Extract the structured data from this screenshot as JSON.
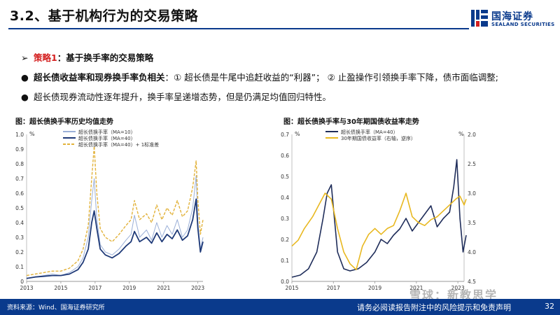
{
  "header": {
    "title": "3.2、基于机构行为的交易策略",
    "logo_cn": "国海证券",
    "logo_en": "SEALAND SECURITIES",
    "brand_color": "#0a3a8c"
  },
  "bullets": [
    {
      "marker": "➢",
      "label": "策略1",
      "text": "：基于换手率的交易策略"
    },
    {
      "marker": "●",
      "label": "超长债收益率和现券换手率负相关",
      "text": "：① 超长债是牛尾中追赶收益的“利器”； ② 止盈操作引领换手率下降，债市面临调整;"
    },
    {
      "marker": "●",
      "label": "",
      "text": "超长债现券流动性逐年提升，换手率呈递增态势，但是仍满足均值回归特性。"
    }
  ],
  "charts": {
    "left_title": "图：超长债换手率历史均值走势",
    "right_title": "图：超长债换手率与30年期国债收益率走势"
  },
  "chart_data": [
    {
      "type": "line",
      "title": "图：超长债换手率历史均值走势",
      "unit_label": "%",
      "x_ticks": [
        "2013",
        "2015",
        "2017",
        "2019",
        "2021",
        "2023"
      ],
      "ylim": [
        0,
        1.0
      ],
      "y_ticks": [
        "0",
        "0.1",
        "0.2",
        "0.3",
        "0.4",
        "0.5",
        "0.6",
        "0.7",
        "0.8",
        "0.9",
        "1.0"
      ],
      "series": [
        {
          "name": "超长债换手率（MA=10）",
          "color": "#9bb0d8",
          "x": [
            2013.0,
            2013.5,
            2014.0,
            2014.5,
            2015.0,
            2015.5,
            2016.0,
            2016.3,
            2016.6,
            2016.8,
            2016.95,
            2017.1,
            2017.3,
            2017.6,
            2018.0,
            2018.4,
            2018.8,
            2019.1,
            2019.3,
            2019.6,
            2020.0,
            2020.3,
            2020.6,
            2020.9,
            2021.2,
            2021.5,
            2021.8,
            2022.1,
            2022.4,
            2022.7,
            2022.9,
            2023.0,
            2023.15,
            2023.3
          ],
          "y": [
            0.02,
            0.03,
            0.04,
            0.05,
            0.04,
            0.06,
            0.1,
            0.16,
            0.3,
            0.55,
            0.7,
            0.42,
            0.25,
            0.2,
            0.18,
            0.22,
            0.28,
            0.32,
            0.45,
            0.3,
            0.35,
            0.28,
            0.4,
            0.3,
            0.38,
            0.32,
            0.42,
            0.3,
            0.35,
            0.5,
            0.72,
            0.4,
            0.22,
            0.3
          ]
        },
        {
          "name": "超长债换手率（MA=40）",
          "color": "#1f3a78",
          "x": [
            2013.0,
            2013.5,
            2014.0,
            2014.5,
            2015.0,
            2015.5,
            2016.0,
            2016.3,
            2016.6,
            2016.8,
            2016.95,
            2017.1,
            2017.3,
            2017.6,
            2018.0,
            2018.4,
            2018.8,
            2019.1,
            2019.3,
            2019.6,
            2020.0,
            2020.3,
            2020.6,
            2020.9,
            2021.2,
            2021.5,
            2021.8,
            2022.1,
            2022.4,
            2022.7,
            2022.9,
            2023.0,
            2023.15,
            2023.3
          ],
          "y": [
            0.02,
            0.03,
            0.035,
            0.04,
            0.04,
            0.05,
            0.08,
            0.13,
            0.22,
            0.4,
            0.48,
            0.36,
            0.22,
            0.18,
            0.16,
            0.19,
            0.24,
            0.27,
            0.34,
            0.27,
            0.3,
            0.26,
            0.33,
            0.27,
            0.32,
            0.29,
            0.35,
            0.28,
            0.31,
            0.42,
            0.56,
            0.36,
            0.2,
            0.27
          ]
        },
        {
          "name": "超长债换手率（MA=40）+ 1标准差",
          "color": "#e2b23a",
          "x": [
            2013.0,
            2013.5,
            2014.0,
            2014.5,
            2015.0,
            2015.5,
            2016.0,
            2016.3,
            2016.6,
            2016.8,
            2016.95,
            2017.1,
            2017.3,
            2017.6,
            2018.0,
            2018.4,
            2018.8,
            2019.1,
            2019.3,
            2019.6,
            2020.0,
            2020.3,
            2020.6,
            2020.9,
            2021.2,
            2021.5,
            2021.8,
            2022.1,
            2022.4,
            2022.7,
            2022.9,
            2023.0,
            2023.15,
            2023.3
          ],
          "y": [
            0.04,
            0.05,
            0.06,
            0.07,
            0.07,
            0.09,
            0.14,
            0.22,
            0.38,
            0.7,
            0.92,
            0.6,
            0.36,
            0.3,
            0.27,
            0.32,
            0.38,
            0.42,
            0.55,
            0.42,
            0.46,
            0.4,
            0.52,
            0.42,
            0.5,
            0.45,
            0.55,
            0.44,
            0.48,
            0.64,
            0.82,
            0.55,
            0.32,
            0.42
          ]
        }
      ]
    },
    {
      "type": "line",
      "title": "图：超长债换手率与30年期国债收益率走势",
      "unit_label_left": "%",
      "unit_label_right": "%",
      "x_ticks": [
        "2015",
        "2017",
        "2019",
        "2021",
        "2023"
      ],
      "ylim": [
        0,
        0.7
      ],
      "y_ticks": [
        "0.0",
        "0.1",
        "0.2",
        "0.3",
        "0.4",
        "0.5",
        "0.6",
        "0.7"
      ],
      "y2lim": [
        2.0,
        4.5
      ],
      "y2_reversed": true,
      "y2_ticks": [
        "2.0",
        "2.5",
        "3.0",
        "3.5",
        "4.0",
        "4.5"
      ],
      "series": [
        {
          "name": "超长债换手率（MA=40）",
          "color": "#1f2d5a",
          "axis": "left",
          "x": [
            2015.0,
            2015.4,
            2015.8,
            2016.2,
            2016.5,
            2016.7,
            2016.9,
            2017.0,
            2017.2,
            2017.5,
            2017.8,
            2018.2,
            2018.6,
            2019.0,
            2019.3,
            2019.6,
            2019.9,
            2020.2,
            2020.5,
            2020.8,
            2021.1,
            2021.4,
            2021.7,
            2022.0,
            2022.3,
            2022.6,
            2022.8,
            2022.95,
            2023.1,
            2023.25,
            2023.4
          ],
          "y": [
            0.02,
            0.03,
            0.06,
            0.14,
            0.3,
            0.42,
            0.46,
            0.35,
            0.14,
            0.06,
            0.05,
            0.06,
            0.09,
            0.14,
            0.2,
            0.18,
            0.22,
            0.25,
            0.3,
            0.24,
            0.28,
            0.32,
            0.36,
            0.26,
            0.3,
            0.33,
            0.45,
            0.58,
            0.3,
            0.14,
            0.22
          ]
        },
        {
          "name": "30年期国债收益率（右轴，逆序）",
          "color": "#e8b820",
          "axis": "right",
          "x": [
            2015.0,
            2015.3,
            2015.6,
            2016.0,
            2016.3,
            2016.6,
            2016.9,
            2017.2,
            2017.5,
            2017.8,
            2018.1,
            2018.4,
            2018.7,
            2019.0,
            2019.3,
            2019.6,
            2019.9,
            2020.2,
            2020.5,
            2020.8,
            2021.1,
            2021.4,
            2021.7,
            2022.0,
            2022.3,
            2022.6,
            2022.9,
            2023.1,
            2023.3,
            2023.4
          ],
          "y": [
            3.9,
            3.8,
            3.6,
            3.4,
            3.2,
            3.0,
            3.1,
            3.6,
            4.0,
            4.2,
            4.3,
            3.9,
            3.7,
            3.6,
            3.7,
            3.6,
            3.55,
            3.3,
            3.0,
            3.4,
            3.5,
            3.55,
            3.45,
            3.4,
            3.3,
            3.2,
            3.1,
            3.05,
            3.2,
            3.1
          ]
        }
      ]
    }
  ],
  "footer": {
    "source": "资料来源：Wind、国海证券研究所",
    "disclaimer": "请务必阅读报告附注中的风险提示和免责声明",
    "page": "32"
  },
  "watermark": "雪球：新教思学"
}
